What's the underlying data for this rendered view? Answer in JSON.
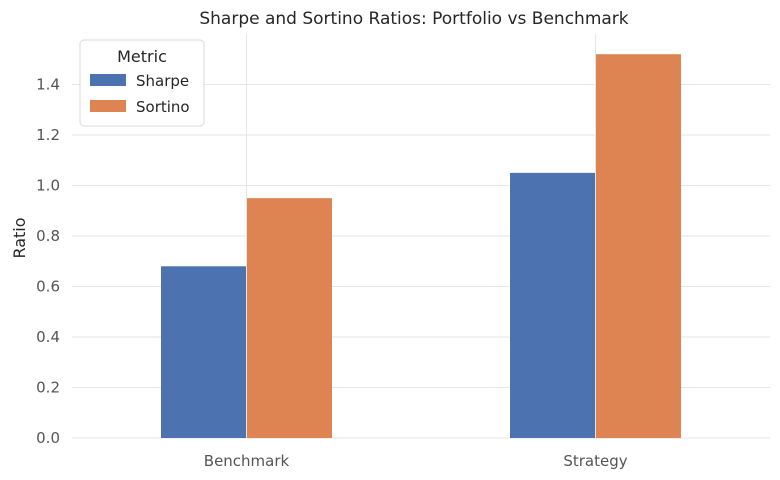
{
  "chart_data": {
    "type": "bar",
    "title": "Sharpe and Sortino Ratios: Portfolio vs Benchmark",
    "xlabel": "",
    "ylabel": "Ratio",
    "categories": [
      "Benchmark",
      "Strategy"
    ],
    "series": [
      {
        "name": "Sharpe",
        "values": [
          0.68,
          1.05
        ],
        "color": "#4c72b0"
      },
      {
        "name": "Sortino",
        "values": [
          0.95,
          1.52
        ],
        "color": "#dd8452"
      }
    ],
    "ylim": [
      0,
      1.6
    ],
    "yticks": [
      "0.0",
      "0.2",
      "0.4",
      "0.6",
      "0.8",
      "1.0",
      "1.2",
      "1.4"
    ],
    "grid": true,
    "legend": {
      "title": "Metric",
      "position": "top-left"
    }
  }
}
